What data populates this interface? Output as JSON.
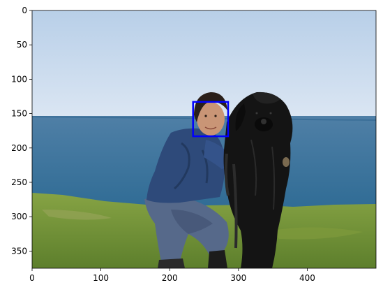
{
  "plot": {
    "x_ticks": [
      0,
      100,
      200,
      300,
      400
    ],
    "y_ticks": [
      0,
      50,
      100,
      150,
      200,
      250,
      300,
      350
    ],
    "xlim": [
      0,
      500
    ],
    "ylim": [
      375,
      0
    ],
    "y_inverted": true
  },
  "box": {
    "x0": 234,
    "y0": 133,
    "x1": 285,
    "y1": 183,
    "color": "#0000ff"
  },
  "scene": {
    "description_free": true,
    "colors": {
      "sky_top": "#b8cfe8",
      "sky_bottom": "#dbe6f3",
      "sea_top": "#4f7fa6",
      "sea_bottom": "#2e6b94",
      "grass": "#6d8f35",
      "jacket": "#2e4a7a",
      "jeans": "#5c6f8a",
      "dog": "#141414",
      "skin": "#c99576"
    }
  }
}
